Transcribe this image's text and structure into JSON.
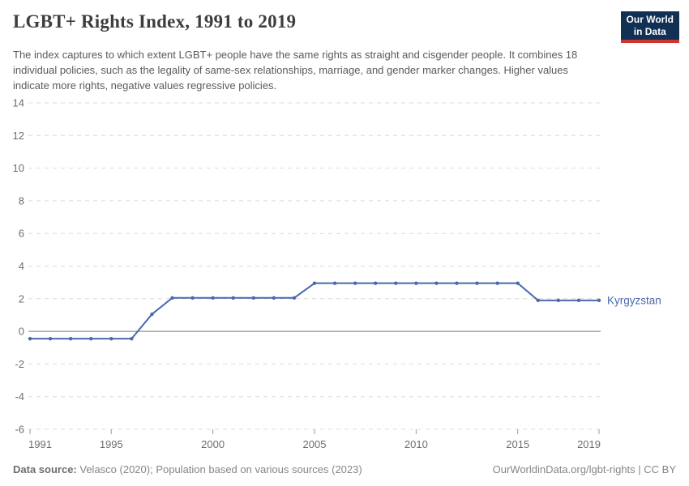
{
  "header": {
    "title": "LGBT+ Rights Index, 1991 to 2019",
    "subtitle": "The index captures to which extent LGBT+ people have the same rights as straight and cisgender people. It combines 18 individual policies, such as the legality of same-sex relationships, marriage, and gender marker changes. Higher values indicate more rights, negative values regressive policies.",
    "logo": {
      "line1": "Our World",
      "line2": "in Data",
      "bg_color": "#122f54",
      "accent_color": "#d0342f"
    }
  },
  "chart_data": {
    "type": "line",
    "title": "LGBT+ Rights Index, 1991 to 2019",
    "x": [
      1991,
      1992,
      1993,
      1994,
      1995,
      1996,
      1997,
      1998,
      1999,
      2000,
      2001,
      2002,
      2003,
      2004,
      2005,
      2006,
      2007,
      2008,
      2009,
      2010,
      2011,
      2012,
      2013,
      2014,
      2015,
      2016,
      2017,
      2018,
      2019
    ],
    "series": [
      {
        "name": "Kyrgyzstan",
        "color": "#4a69ad",
        "values": [
          -0.45,
          -0.45,
          -0.45,
          -0.45,
          -0.45,
          -0.45,
          1.05,
          2.05,
          2.05,
          2.05,
          2.05,
          2.05,
          2.05,
          2.05,
          2.95,
          2.95,
          2.95,
          2.95,
          2.95,
          2.95,
          2.95,
          2.95,
          2.95,
          2.95,
          2.95,
          1.9,
          1.9,
          1.9,
          1.9
        ]
      }
    ],
    "xticks": [
      1991,
      1995,
      2000,
      2005,
      2010,
      2015,
      2019
    ],
    "yticks": [
      14,
      12,
      10,
      8,
      6,
      4,
      2,
      0,
      -2,
      -4,
      -6
    ],
    "xlim": [
      1991,
      2019
    ],
    "ylim": [
      -6,
      14
    ],
    "grid": "horizontal-dashed",
    "zero_line": true,
    "legend_position": "end-of-line-label",
    "grid_color": "#dcdcdc",
    "zero_line_color": "#a3a3a3",
    "axis_label_color": "#6e6e6e"
  },
  "footer": {
    "source_label": "Data source:",
    "source_text": "Velasco (2020); Population based on various sources (2023)",
    "right_text": "OurWorldinData.org/lgbt-rights | CC BY"
  }
}
